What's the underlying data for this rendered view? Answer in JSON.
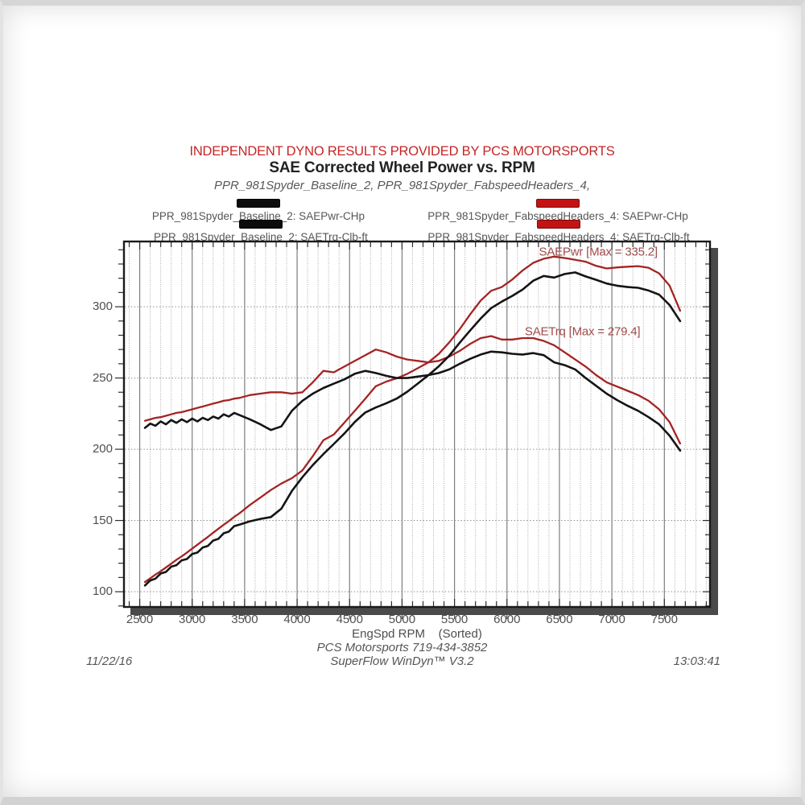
{
  "page": {
    "banner": "INDEPENDENT DYNO RESULTS PROVIDED BY PCS MOTORSPORTS",
    "title": "SAE Corrected Wheel Power vs. RPM",
    "subtitle": "PPR_981Spyder_Baseline_2, PPR_981Spyder_FabspeedHeaders_4,",
    "footer_center_line1": "PCS Motorsports 719-434-3852",
    "footer_center_line2": "SuperFlow WinDyn™ V3.2",
    "footer_left_date": "11/22/16",
    "footer_right_time": "13:03:41"
  },
  "colors": {
    "baseline_curve": "#141414",
    "fabspeed_curve": "#a32424",
    "baseline_swatch": "#0c0c0c",
    "fabspeed_swatch": "#c31313",
    "banner_red": "#c52525",
    "annotation": "#a14a4a"
  },
  "legend": {
    "entries": [
      {
        "label": "PPR_981Spyder_Baseline_2: SAEPwr-CHp",
        "color": "#0c0c0c"
      },
      {
        "label": "PPR_981Spyder_FabspeedHeaders_4: SAEPwr-CHp",
        "color": "#c31313"
      },
      {
        "label": "PPR_981Spyder_Baseline_2: SAETrq-Clb-ft",
        "color": "#0c0c0c"
      },
      {
        "label": "PPR_981Spyder_FabspeedHeaders_4: SAETrq-Clb-ft",
        "color": "#c31313"
      }
    ]
  },
  "chart_data": {
    "type": "line",
    "title": "SAE Corrected Wheel Power vs. RPM",
    "xlabel": "EngSpd RPM",
    "xlabel_suffix": "(Sorted)",
    "xlabel_text": "EngSpd RPM    (Sorted)",
    "ylabel": "",
    "x_range": [
      2350,
      7935
    ],
    "y_range": [
      89.3,
      345.8
    ],
    "x_ticks": [
      2500,
      3000,
      3500,
      4000,
      4500,
      5000,
      5500,
      6000,
      6500,
      7000,
      7500
    ],
    "y_ticks": [
      100,
      150,
      200,
      250,
      300
    ],
    "x_minor_step": 100,
    "y_minor_step": 10,
    "grid": "on",
    "legend_position": "top",
    "max_power_fabspeed": 335.2,
    "max_torque_fabspeed": 279.4,
    "annotations": [
      {
        "text": "SAEPwr [Max = 335.2]",
        "rpm": 6870,
        "value": 338.5
      },
      {
        "text": "SAETrq [Max = 279.4]",
        "rpm": 6720,
        "value": 282.8
      }
    ],
    "rpm": [
      2550,
      2600,
      2650,
      2700,
      2750,
      2800,
      2850,
      2900,
      2950,
      3000,
      3050,
      3100,
      3150,
      3200,
      3250,
      3300,
      3350,
      3400,
      3450,
      3550,
      3650,
      3750,
      3850,
      3950,
      4050,
      4150,
      4250,
      4350,
      4450,
      4550,
      4650,
      4750,
      4850,
      4950,
      5050,
      5150,
      5250,
      5350,
      5450,
      5550,
      5650,
      5750,
      5850,
      5950,
      6050,
      6150,
      6250,
      6350,
      6450,
      6550,
      6650,
      6750,
      6850,
      6950,
      7050,
      7150,
      7250,
      7350,
      7450,
      7550,
      7650
    ],
    "series": [
      {
        "name": "PPR_981Spyder_Baseline_2: SAEPwr-CHp",
        "unit": "CHp",
        "color": "#141414",
        "values": [
          104.4,
          107.9,
          109.2,
          112.8,
          113.9,
          117.6,
          118.6,
          122.0,
          123.0,
          126.5,
          127.5,
          131.0,
          132.2,
          135.9,
          137.1,
          141.0,
          142.2,
          146.0,
          147.1,
          149.4,
          151.1,
          152.4,
          158.3,
          170.7,
          180.4,
          188.9,
          196.6,
          203.7,
          211.0,
          219.2,
          225.8,
          229.3,
          232.3,
          235.6,
          240.4,
          246.1,
          251.9,
          258.2,
          265.7,
          274.8,
          283.5,
          291.8,
          299.1,
          303.6,
          307.6,
          312.1,
          318.3,
          321.6,
          320.5,
          323.0,
          324.1,
          321.3,
          318.9,
          316.3,
          314.8,
          313.8,
          313.3,
          311.4,
          308.5,
          301.2,
          289.9
        ]
      },
      {
        "name": "PPR_981Spyder_FabspeedHeaders_4: SAEPwr-CHp",
        "unit": "CHp",
        "color": "#a32424",
        "values": [
          106.8,
          109.4,
          112.0,
          114.4,
          117.0,
          119.7,
          122.4,
          124.8,
          127.5,
          130.2,
          133.0,
          135.8,
          138.5,
          141.4,
          144.2,
          147.0,
          149.6,
          152.5,
          155.0,
          160.9,
          166.1,
          171.4,
          175.9,
          179.7,
          185.1,
          195.2,
          206.3,
          210.4,
          218.6,
          227.0,
          235.5,
          244.2,
          247.5,
          249.8,
          252.9,
          256.9,
          260.9,
          266.9,
          275.0,
          284.3,
          294.8,
          304.4,
          311.2,
          313.8,
          319.1,
          325.5,
          330.8,
          333.7,
          335.2,
          334.2,
          333.0,
          331.6,
          328.7,
          326.9,
          327.6,
          328.1,
          328.5,
          327.4,
          323.4,
          314.8,
          297.2
        ]
      },
      {
        "name": "PPR_981Spyder_Baseline_2: SAETrq-Clb-ft",
        "unit": "Clb-ft",
        "color": "#141414",
        "values": [
          215,
          218,
          216.5,
          219.5,
          217.5,
          220.5,
          218.5,
          221,
          219,
          221.5,
          219.5,
          222,
          220.5,
          223,
          221.5,
          224.5,
          223,
          225.5,
          224,
          221,
          217.5,
          213.5,
          216,
          227,
          234,
          239,
          243,
          246,
          249,
          253,
          255,
          253.5,
          251.5,
          250,
          250,
          251,
          252,
          253.5,
          256,
          260,
          263.5,
          266.5,
          268.5,
          268,
          267,
          266.5,
          267.5,
          266,
          261,
          259,
          256,
          250,
          244.5,
          239,
          234.5,
          230.5,
          227,
          222.5,
          217.5,
          209.5,
          199
        ]
      },
      {
        "name": "PPR_981Spyder_FabspeedHeaders_4: SAETrq-Clb-ft",
        "unit": "Clb-ft",
        "color": "#a32424",
        "values": [
          220,
          221,
          222,
          222.5,
          223.5,
          224.5,
          225.5,
          226,
          227,
          228,
          229,
          230,
          231,
          232,
          233,
          234,
          234.5,
          235.5,
          236,
          238,
          239,
          240,
          240,
          239,
          240,
          247,
          255,
          254,
          258,
          262,
          266,
          270,
          268,
          265,
          263,
          262,
          261,
          262,
          265,
          269,
          274,
          278,
          279.4,
          277,
          277,
          278,
          278,
          276,
          273,
          268,
          263,
          258,
          252,
          247,
          244,
          241,
          238,
          234,
          228,
          219,
          204
        ]
      }
    ]
  }
}
